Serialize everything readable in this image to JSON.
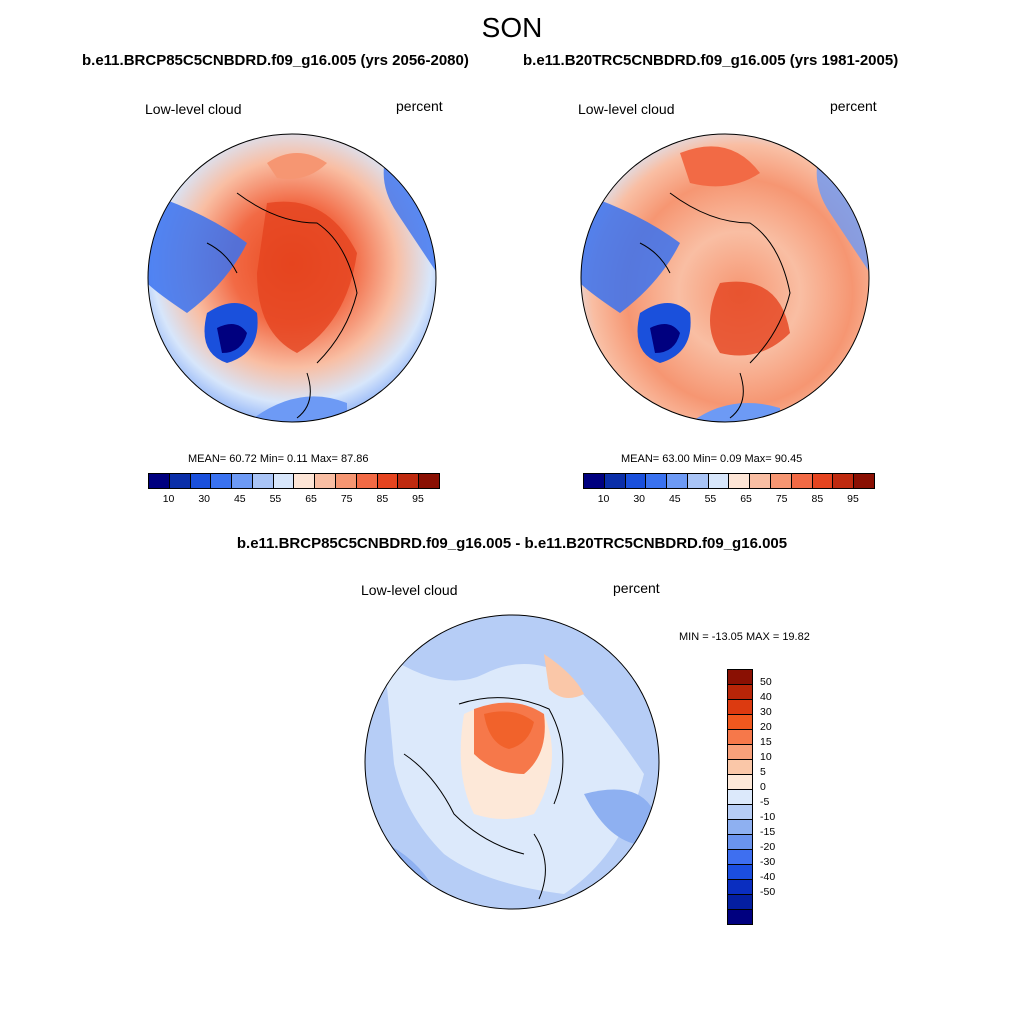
{
  "season": "SON",
  "panels": [
    {
      "case_title": "b.e11.BRCP85C5CNBDRD.f09_g16.005 (yrs 2056-2080)",
      "variable": "Low-level cloud",
      "units": "percent",
      "stats": "MEAN=  60.72  Min=   0.11  Max=  87.86"
    },
    {
      "case_title": "b.e11.B20TRC5CNBDRD.f09_g16.005 (yrs 1981-2005)",
      "variable": "Low-level cloud",
      "units": "percent",
      "stats": "MEAN=  63.00  Min=   0.09  Max=  90.45"
    }
  ],
  "diff": {
    "title": "b.e11.BRCP85C5CNBDRD.f09_g16.005 - b.e11.B20TRC5CNBDRD.f09_g16.005",
    "variable": "Low-level cloud",
    "units": "percent",
    "stats": "MIN = -13.05 MAX =  19.82"
  },
  "colorbar_abs": {
    "colors": [
      "#00007f",
      "#0a2ea8",
      "#1a50dc",
      "#3a72f0",
      "#6d9af5",
      "#a9c4f6",
      "#d7e6fb",
      "#fde5d6",
      "#f9bea3",
      "#f69672",
      "#f26a45",
      "#e5441f",
      "#bf2a0f",
      "#8a1003"
    ],
    "labels": [
      "10",
      "30",
      "45",
      "55",
      "65",
      "75",
      "85",
      "95"
    ]
  },
  "colorbar_diff": {
    "colors": [
      "#8a1003",
      "#b82508",
      "#dc3a10",
      "#f0581e",
      "#f6784a",
      "#f8a07a",
      "#fac7a8",
      "#fde8d8",
      "#dce9fb",
      "#b6cdf6",
      "#8eb0f1",
      "#6a93ee",
      "#3e6ff0",
      "#1b4ee0",
      "#0a2ec0",
      "#041ea0",
      "#00007f"
    ],
    "labels": [
      "50",
      "40",
      "30",
      "20",
      "15",
      "10",
      "5",
      "0",
      "-5",
      "-10",
      "-15",
      "-20",
      "-30",
      "-40",
      "-50"
    ]
  }
}
